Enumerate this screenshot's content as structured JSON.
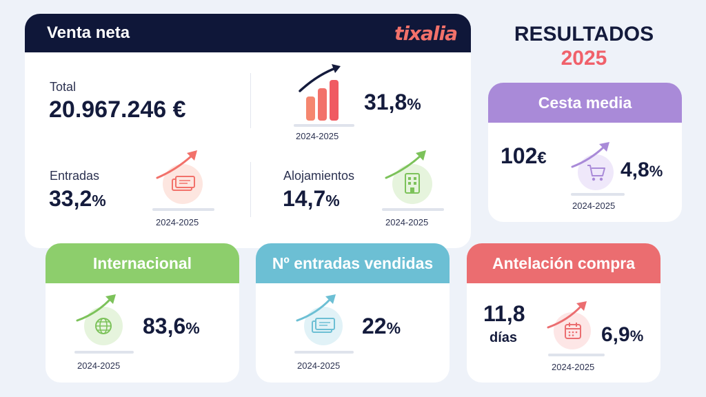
{
  "venta": {
    "title": "Venta neta",
    "logo": "tixalia",
    "total_label": "Total",
    "total_value": "20.967.246 €",
    "growth_value": "31,8",
    "growth_unit": "%",
    "growth_period": "2024-2025",
    "entradas_label": "Entradas",
    "entradas_value": "33,2",
    "entradas_unit": "%",
    "entradas_period": "2024-2025",
    "aloj_label": "Alojamientos",
    "aloj_value": "14,7",
    "aloj_unit": "%",
    "aloj_period": "2024-2025"
  },
  "heading": {
    "line1": "RESULTADOS",
    "line2": "2025"
  },
  "cesta": {
    "title": "Cesta media",
    "amount": "102",
    "amount_unit": "€",
    "value": "4,8",
    "unit": "%",
    "period": "2024-2025"
  },
  "internacional": {
    "title": "Internacional",
    "value": "83,6",
    "unit": "%",
    "period": "2024-2025"
  },
  "entradas_vendidas": {
    "title": "Nº entradas vendidas",
    "value": "22",
    "unit": "%",
    "period": "2024-2025"
  },
  "antelacion": {
    "title": "Antelación compra",
    "days_value": "11,8",
    "days_label": "días",
    "value": "6,9",
    "unit": "%",
    "period": "2024-2025"
  },
  "colors": {
    "navy": "#0f1739",
    "orange": "#f2716a",
    "purple": "#a98ad8",
    "green": "#8dce6c",
    "teal": "#6cbfd4",
    "red": "#eb6d70"
  }
}
